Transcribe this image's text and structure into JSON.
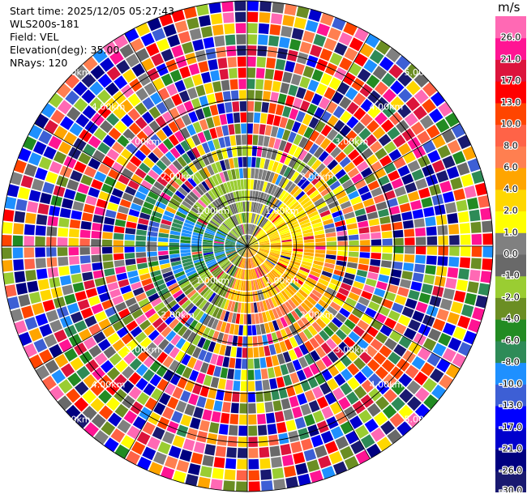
{
  "header": {
    "start_time": "Start time: 2025/12/05 05:27:43",
    "station": "WLS200s-181",
    "field": "Field: VEL",
    "elevation": "Elevation(deg): 35.00",
    "nrays": "NRays: 120"
  },
  "colorbar": {
    "unit": "m/s",
    "colors": [
      "#191970",
      "#000080",
      "#0000cd",
      "#0000ff",
      "#3d5fd5",
      "#1e90ff",
      "#2e8b57",
      "#228b22",
      "#6b8e23",
      "#9acd32",
      "#696969",
      "#808080",
      "#ffff00",
      "#ffd700",
      "#ffa500",
      "#ff7f50",
      "#ff6347",
      "#ff4500",
      "#ff0000",
      "#dc143c",
      "#ff1493",
      "#ff69b4"
    ],
    "tick_labels": [
      "-30.0",
      "-26.0",
      "-21.0",
      "-17.0",
      "-13.0",
      "-10.0",
      "-8.0",
      "-6.0",
      "-4.0",
      "-2.0",
      "-1.0",
      "0.0",
      "1.0",
      "2.0",
      "4.0",
      "6.0",
      "8.0",
      "10.0",
      "13.0",
      "17.0",
      "21.0",
      "26.0"
    ]
  },
  "chart_data": {
    "type": "heatmap",
    "projection": "polar-ppi",
    "field": "VEL",
    "units": "m/s",
    "nrays": 120,
    "elevation_deg": 35.0,
    "range_rings_km": [
      1.0,
      2.0,
      3.0,
      4.0,
      5.0
    ],
    "ring_labels": [
      "1.00km",
      "2.00km",
      "3.00km",
      "4.00km",
      "5.00km"
    ],
    "vmin": -30.0,
    "vmax": 30.0,
    "max_range_km": 5.0,
    "sectors": [
      {
        "from_deg": 0,
        "to_deg": 40,
        "dominant": "yellow",
        "value_ms": 1.5
      },
      {
        "from_deg": 40,
        "to_deg": 80,
        "dominant": "orange-red",
        "value_ms": 6.0
      },
      {
        "from_deg": 80,
        "to_deg": 140,
        "dominant": "tomato",
        "value_ms": 8.0
      },
      {
        "from_deg": 140,
        "to_deg": 200,
        "dominant": "orange-red",
        "value_ms": 10.0
      },
      {
        "from_deg": 200,
        "to_deg": 240,
        "dominant": "green",
        "value_ms": -5.0
      },
      {
        "from_deg": 240,
        "to_deg": 300,
        "dominant": "blue",
        "value_ms": -13.0
      },
      {
        "from_deg": 300,
        "to_deg": 360,
        "dominant": "olive-green",
        "value_ms": -3.0
      }
    ],
    "inner_field_range_km": 1.8,
    "outer_noise": true
  }
}
